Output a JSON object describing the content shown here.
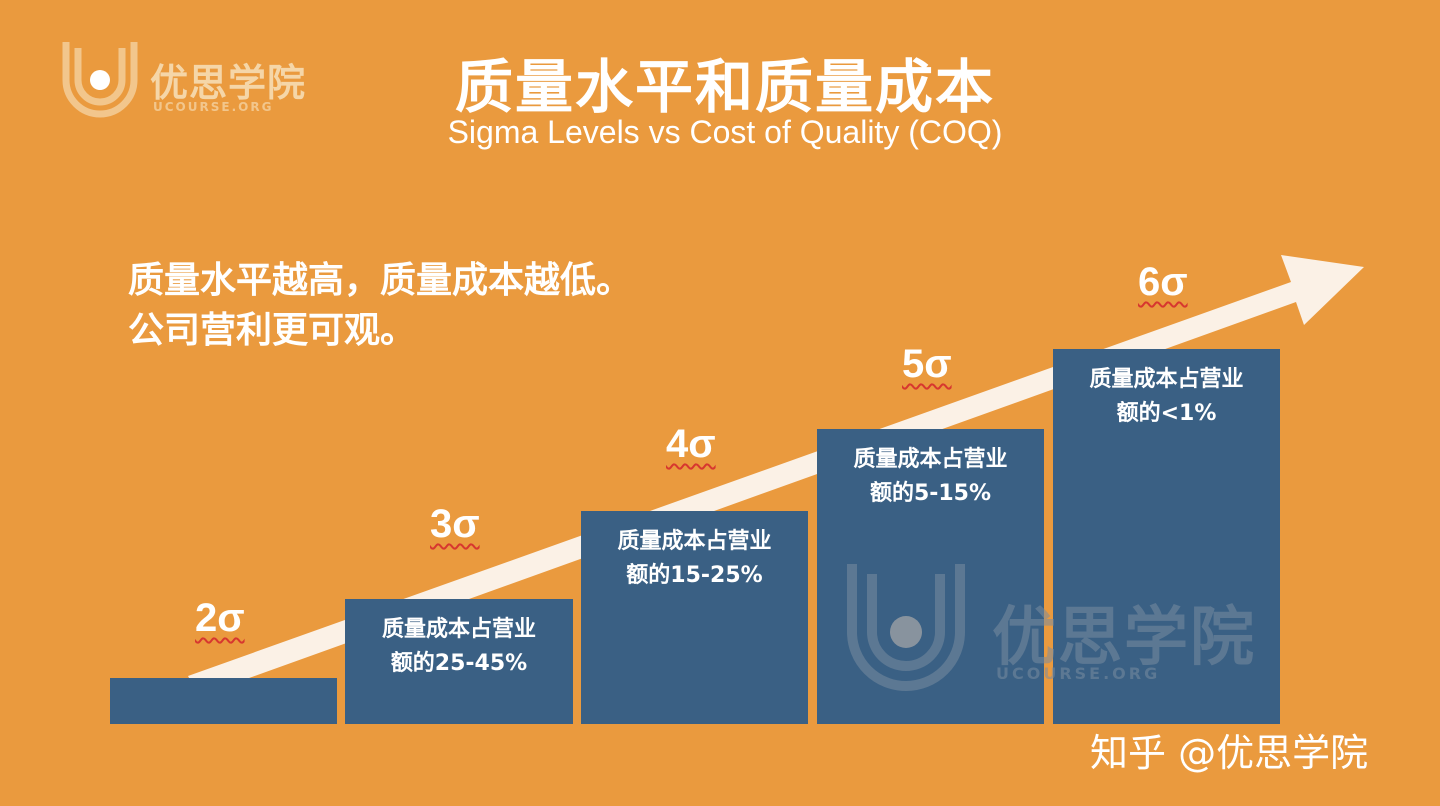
{
  "brand": {
    "name": "优思学院",
    "site": "UCOURSE.ORG"
  },
  "header": {
    "title": "质量水平和质量成本",
    "subtitle": "Sigma Levels vs Cost of Quality (COQ)"
  },
  "statement": {
    "line1": "质量水平越高，质量成本越低。",
    "line2": "公司营利更可观。"
  },
  "steps": [
    {
      "sigma": "2σ",
      "desc_line1": "",
      "desc_line2": ""
    },
    {
      "sigma": "3σ",
      "desc_line1": "质量成本占营业",
      "desc_line2": "额的25-45%"
    },
    {
      "sigma": "4σ",
      "desc_line1": "质量成本占营业",
      "desc_line2": "额的15-25%"
    },
    {
      "sigma": "5σ",
      "desc_line1": "质量成本占营业",
      "desc_line2": "额的5-15%"
    },
    {
      "sigma": "6σ",
      "desc_line1": "质量成本占营业",
      "desc_line2": "额的<1%"
    }
  ],
  "watermark": {
    "name": "优思学院",
    "site": "UCOURSE.ORG"
  },
  "credit": "知乎 @优思学院",
  "colors": {
    "background": "#EA9A3E",
    "bar": "#3A6084",
    "arrow": "#FBF1E6",
    "text": "#FFFFFF",
    "squiggle": "#D7372F"
  }
}
